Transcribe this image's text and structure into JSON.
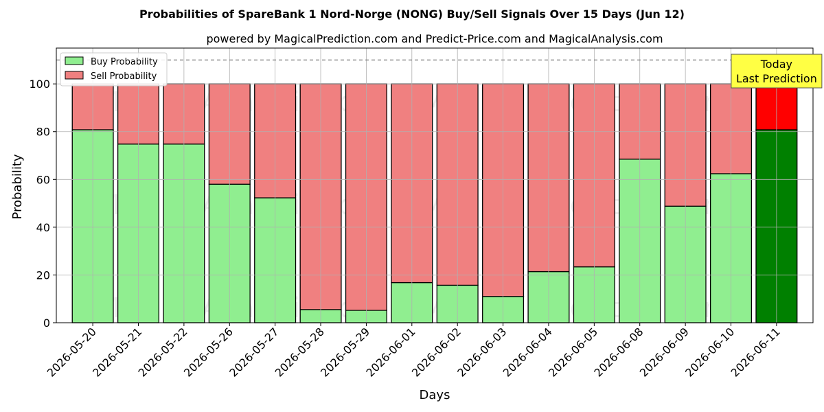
{
  "chart_data": {
    "type": "bar",
    "stacked": true,
    "title": "Probabilities of SpareBank 1 Nord-Norge (NONG) Buy/Sell Signals Over 15 Days (Jun 12)",
    "subtitle": "powered by MagicalPrediction.com and Predict-Price.com and MagicalAnalysis.com",
    "xlabel": "Days",
    "ylabel": "Probability",
    "ylim": [
      0,
      115
    ],
    "yticks": [
      0,
      20,
      40,
      60,
      80,
      100
    ],
    "reference_line": 110,
    "grid": true,
    "legend_position": "top-left",
    "categories": [
      "2026-05-20",
      "2026-05-21",
      "2026-05-22",
      "2026-05-26",
      "2026-05-27",
      "2026-05-28",
      "2026-05-29",
      "2026-06-01",
      "2026-06-02",
      "2026-06-03",
      "2026-06-04",
      "2026-06-05",
      "2026-06-08",
      "2026-06-09",
      "2026-06-10",
      "2026-06-11"
    ],
    "series": [
      {
        "name": "Buy Probability",
        "color": "#90ee90",
        "highlight_color": "#008000",
        "values": [
          80.8,
          74.8,
          74.8,
          58.0,
          52.3,
          5.5,
          5.2,
          16.8,
          15.7,
          11.0,
          21.4,
          23.4,
          68.5,
          48.8,
          62.4,
          80.8
        ]
      },
      {
        "name": "Sell Probability",
        "color": "#f08080",
        "highlight_color": "#ff0000",
        "values": [
          19.2,
          25.2,
          25.2,
          42.0,
          47.7,
          94.5,
          94.8,
          83.2,
          84.3,
          89.0,
          78.6,
          76.6,
          31.5,
          51.2,
          37.6,
          19.2
        ]
      }
    ],
    "annotation": {
      "line1": "Today",
      "line2": "Last Prediction",
      "color": "#ffff44"
    },
    "watermarks": [
      "MagicalAnalysis.com",
      "MagicalPrediction.com"
    ]
  }
}
